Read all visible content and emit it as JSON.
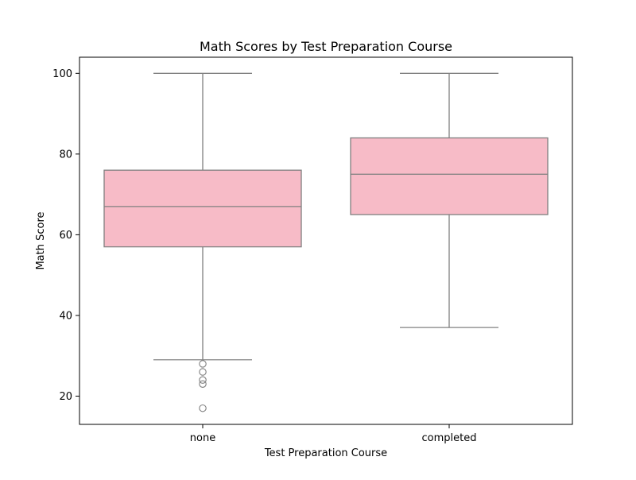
{
  "chart_data": {
    "type": "box",
    "title": "Math Scores by Test Preparation Course",
    "xlabel": "Test Preparation Course",
    "ylabel": "Math Score",
    "ylim": [
      13,
      104
    ],
    "yticks": [
      20,
      40,
      60,
      80,
      100
    ],
    "grid": false,
    "box_color": "#f7bbc7",
    "line_color": "#808080",
    "categories": [
      "none",
      "completed"
    ],
    "boxes": [
      {
        "category": "none",
        "whisker_low": 29,
        "q1": 57,
        "median": 67,
        "q3": 76,
        "whisker_high": 100,
        "outliers": [
          28,
          26,
          24,
          23,
          17
        ]
      },
      {
        "category": "completed",
        "whisker_low": 37,
        "q1": 65,
        "median": 75,
        "q3": 84,
        "whisker_high": 100,
        "outliers": []
      }
    ]
  }
}
